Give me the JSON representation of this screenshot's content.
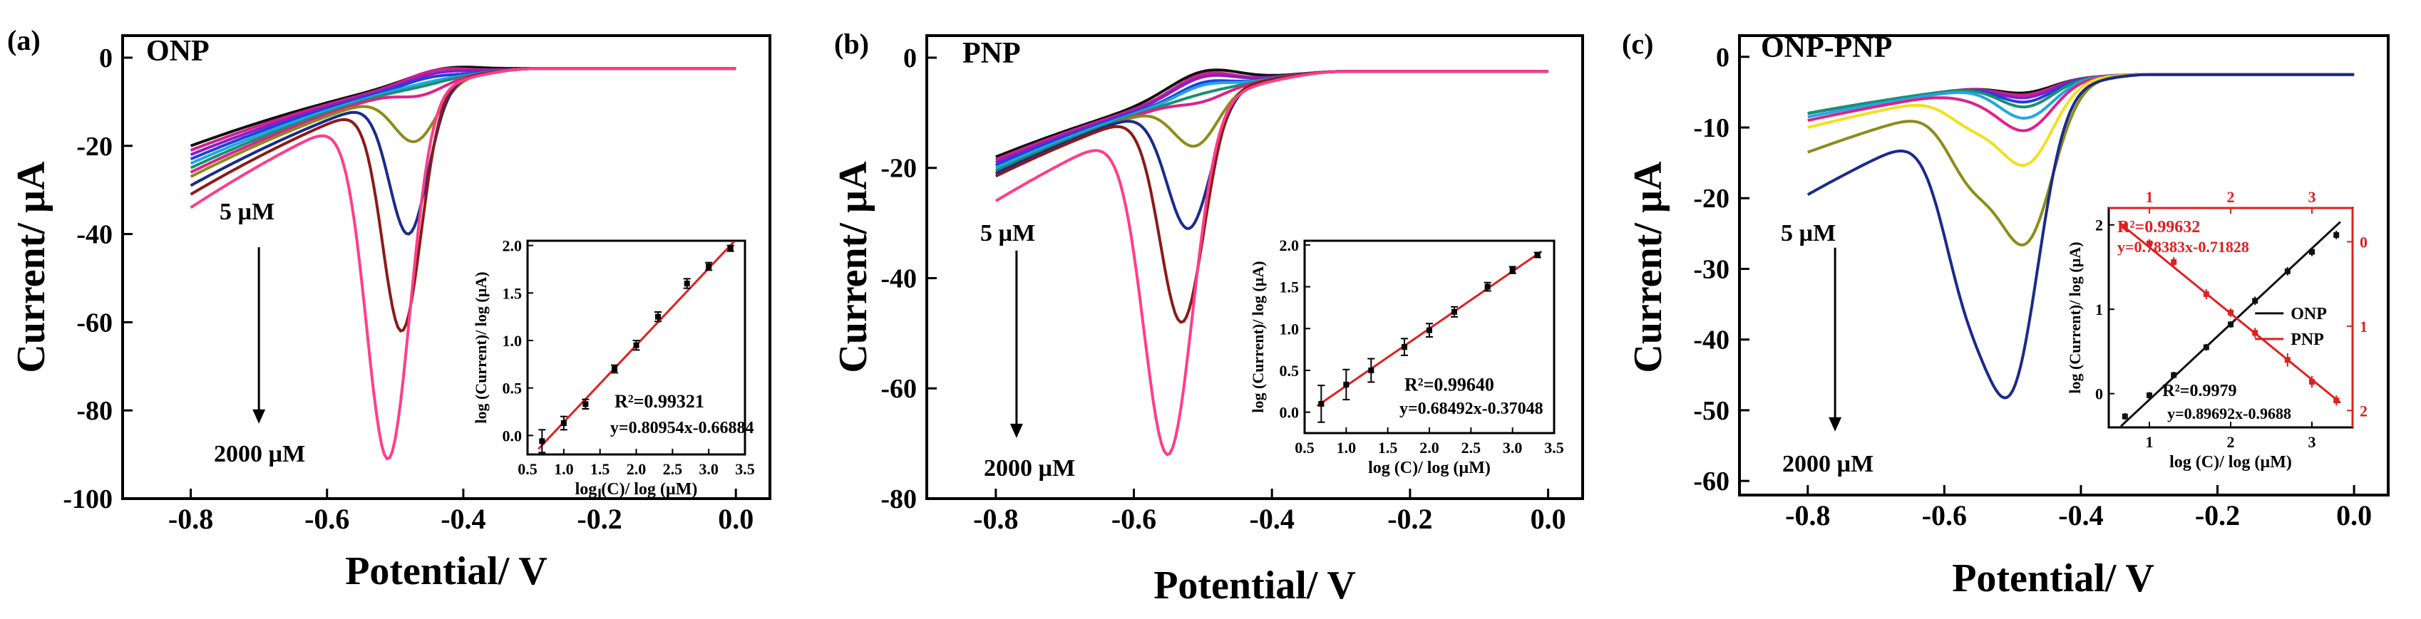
{
  "chart_data": [
    {
      "type": "line",
      "panel_label": "(a)",
      "title": "ONP",
      "xlabel": "Potential/ V",
      "ylabel": "Current/ µA",
      "xlim": [
        -0.9,
        0.05
      ],
      "ylim": [
        -100,
        5
      ],
      "xticks": [
        -0.8,
        -0.6,
        -0.4,
        -0.2,
        0.0
      ],
      "xtick_labels": [
        "-0.8",
        "-0.6",
        "-0.4",
        "-0.2",
        "0.0"
      ],
      "yticks": [
        0,
        -20,
        -40,
        -60,
        -80,
        -100
      ],
      "ytick_labels": [
        "0",
        "-20",
        "-40",
        "-60",
        "-80",
        "-100"
      ],
      "annotation_low": "5 µM",
      "annotation_high": "2000 µM",
      "arrow": {
        "x": -0.7,
        "y_from": -43,
        "y_to": -83
      },
      "series": [
        {
          "name": "c1",
          "color": "#111111",
          "start": -20,
          "peak_v": -0.43,
          "peak": -2.5,
          "peak_w": 0.07
        },
        {
          "name": "c2",
          "color": "#d0208a",
          "start": -21,
          "peak_v": -0.44,
          "peak": -2.8,
          "peak_w": 0.06
        },
        {
          "name": "c3",
          "color": "#8a1fc0",
          "start": -22,
          "peak_v": -0.44,
          "peak": -3.5,
          "peak_w": 0.06
        },
        {
          "name": "c4",
          "color": "#2040e0",
          "start": -23,
          "peak_v": -0.45,
          "peak": -4.5,
          "peak_w": 0.05
        },
        {
          "name": "c5",
          "color": "#20a8e0",
          "start": -24,
          "peak_v": -0.45,
          "peak": -5.5,
          "peak_w": 0.05
        },
        {
          "name": "c6",
          "color": "#1a9070",
          "start": -25,
          "peak_v": -0.46,
          "peak": -6.5,
          "peak_w": 0.045
        },
        {
          "name": "c7",
          "color": "#e0208a",
          "start": -26,
          "peak_v": -0.46,
          "peak": -8.5,
          "peak_w": 0.045
        },
        {
          "name": "c8",
          "color": "#8c8c1a",
          "start": -27,
          "peak_v": -0.47,
          "peak": -19,
          "peak_w": 0.045
        },
        {
          "name": "c9",
          "color": "#1a2a8c",
          "start": -29,
          "peak_v": -0.48,
          "peak": -40,
          "peak_w": 0.04
        },
        {
          "name": "c10",
          "color": "#8c1a1a",
          "start": -31,
          "peak_v": -0.49,
          "peak": -62,
          "peak_w": 0.04
        },
        {
          "name": "c11",
          "color": "#ff3d8a",
          "start": -34,
          "peak_v": -0.51,
          "peak": -91,
          "peak_w": 0.045
        }
      ],
      "inset": {
        "xlabel": "log (C)/ log (µM)",
        "ylabel": "log (Current)/ log (µA)",
        "xlim": [
          0.5,
          3.5
        ],
        "ylim": [
          -0.2,
          2.05
        ],
        "xticks": [
          0.5,
          1.0,
          1.5,
          2.0,
          2.5,
          3.0,
          3.5
        ],
        "xtick_labels": [
          "0.5",
          "1.0",
          "1.5",
          "2.0",
          "2.5",
          "3.0",
          "3.5"
        ],
        "yticks": [
          0.0,
          0.5,
          1.0,
          1.5,
          2.0
        ],
        "ytick_labels": [
          "0.0",
          "0.5",
          "1.0",
          "1.5",
          "2.0"
        ],
        "points": {
          "x": [
            0.7,
            1.0,
            1.3,
            1.7,
            2.0,
            2.3,
            2.7,
            3.0,
            3.3
          ],
          "y": [
            -0.06,
            0.13,
            0.33,
            0.7,
            0.95,
            1.25,
            1.6,
            1.78,
            1.97
          ],
          "err": [
            0.12,
            0.07,
            0.05,
            0.04,
            0.05,
            0.05,
            0.05,
            0.04,
            0.03
          ]
        },
        "fit": {
          "slope": 0.80954,
          "intercept": -0.66884
        },
        "r2_text": "R²=0.99321",
        "eq_text": "y=0.80954x-0.66884"
      }
    },
    {
      "type": "line",
      "panel_label": "(b)",
      "title": "PNP",
      "xlabel": "Potential/ V",
      "ylabel": "Current/ µA",
      "xlim": [
        -0.9,
        0.05
      ],
      "ylim": [
        -80,
        4
      ],
      "xticks": [
        -0.8,
        -0.6,
        -0.4,
        -0.2,
        0.0
      ],
      "xtick_labels": [
        "-0.8",
        "-0.6",
        "-0.4",
        "-0.2",
        "0.0"
      ],
      "yticks": [
        0,
        -20,
        -40,
        -60,
        -80
      ],
      "ytick_labels": [
        "0",
        "-20",
        "-40",
        "-60",
        "-80"
      ],
      "annotation_low": "5 µM",
      "annotation_high": "2000 µM",
      "arrow": {
        "x": -0.77,
        "y_from": -35,
        "y_to": -69
      },
      "series": [
        {
          "name": "c1",
          "color": "#111111",
          "start": -18,
          "peak_v": -0.5,
          "peak": -2.5,
          "peak_w": 0.07
        },
        {
          "name": "c2",
          "color": "#d0208a",
          "start": -18.5,
          "peak_v": -0.5,
          "peak": -3,
          "peak_w": 0.06
        },
        {
          "name": "c3",
          "color": "#8a1fc0",
          "start": -19,
          "peak_v": -0.5,
          "peak": -3.5,
          "peak_w": 0.06
        },
        {
          "name": "c4",
          "color": "#2040e0",
          "start": -19.5,
          "peak_v": -0.5,
          "peak": -4.5,
          "peak_w": 0.05
        },
        {
          "name": "c5",
          "color": "#20a8e0",
          "start": -20,
          "peak_v": -0.5,
          "peak": -5,
          "peak_w": 0.05
        },
        {
          "name": "c6",
          "color": "#1a9070",
          "start": -20.5,
          "peak_v": -0.5,
          "peak": -6.5,
          "peak_w": 0.045
        },
        {
          "name": "c7",
          "color": "#e0208a",
          "start": -21,
          "peak_v": -0.5,
          "peak": -8,
          "peak_w": 0.045
        },
        {
          "name": "c8",
          "color": "#8c8c1a",
          "start": -21,
          "peak_v": -0.51,
          "peak": -16,
          "peak_w": 0.045
        },
        {
          "name": "c9",
          "color": "#1a2a8c",
          "start": -21,
          "peak_v": -0.52,
          "peak": -31,
          "peak_w": 0.045
        },
        {
          "name": "c10",
          "color": "#8c1a1a",
          "start": -21.5,
          "peak_v": -0.53,
          "peak": -48,
          "peak_w": 0.045
        },
        {
          "name": "c11",
          "color": "#ff3d8a",
          "start": -26,
          "peak_v": -0.55,
          "peak": -72,
          "peak_w": 0.05
        }
      ],
      "inset": {
        "xlabel": "log (C)/ log (µM)",
        "ylabel": "log (Current)/ log (µA)",
        "xlim": [
          0.5,
          3.5
        ],
        "ylim": [
          -0.25,
          2.05
        ],
        "xticks": [
          0.5,
          1.0,
          1.5,
          2.0,
          2.5,
          3.0,
          3.5
        ],
        "xtick_labels": [
          "0.5",
          "1.0",
          "1.5",
          "2.0",
          "2.5",
          "3.0",
          "3.5"
        ],
        "yticks": [
          0.0,
          0.5,
          1.0,
          1.5,
          2.0
        ],
        "ytick_labels": [
          "0.0",
          "0.5",
          "1.0",
          "1.5",
          "2.0"
        ],
        "points": {
          "x": [
            0.7,
            1.0,
            1.3,
            1.7,
            2.0,
            2.3,
            2.7,
            3.0,
            3.3
          ],
          "y": [
            0.1,
            0.33,
            0.5,
            0.78,
            0.98,
            1.2,
            1.5,
            1.7,
            1.88
          ],
          "err": [
            0.22,
            0.18,
            0.14,
            0.1,
            0.08,
            0.06,
            0.05,
            0.04,
            0.03
          ]
        },
        "fit": {
          "slope": 0.68492,
          "intercept": -0.37048
        },
        "r2_text": "R²=0.99640",
        "eq_text": "y=0.68492x-0.37048"
      }
    },
    {
      "type": "line",
      "panel_label": "(c)",
      "title": "ONP-PNP",
      "xlabel": "Potential/ V",
      "ylabel": "Current/ µA",
      "xlim": [
        -0.9,
        0.05
      ],
      "ylim": [
        -62,
        3
      ],
      "xticks": [
        -0.8,
        -0.6,
        -0.4,
        -0.2,
        0.0
      ],
      "xtick_labels": [
        "-0.8",
        "-0.6",
        "-0.4",
        "-0.2",
        "0.0"
      ],
      "yticks": [
        0,
        -10,
        -20,
        -30,
        -40,
        -50,
        -60
      ],
      "ytick_labels": [
        "0",
        "-10",
        "-20",
        "-30",
        "-40",
        "-50",
        "-60"
      ],
      "annotation_low": "5 µM",
      "annotation_high": "2000 µM",
      "arrow": {
        "x": -0.76,
        "y_from": -27,
        "y_to": -53
      },
      "series": [
        {
          "name": "c1",
          "color": "#111111",
          "start": -8,
          "p1v": -0.55,
          "p1": 0,
          "p2v": -0.48,
          "p2": -1.5
        },
        {
          "name": "c2",
          "color": "#d0208a",
          "start": -8,
          "p1v": -0.55,
          "p1": 0,
          "p2v": -0.48,
          "p2": -1.8
        },
        {
          "name": "c3",
          "color": "#8a1fc0",
          "start": -8,
          "p1v": -0.55,
          "p1": 0,
          "p2v": -0.48,
          "p2": -2.2
        },
        {
          "name": "c4",
          "color": "#2040e0",
          "start": -8,
          "p1v": -0.55,
          "p1": 0,
          "p2v": -0.48,
          "p2": -2.8
        },
        {
          "name": "c5",
          "color": "#1a9070",
          "start": -8,
          "p1v": -0.55,
          "p1": 0,
          "p2v": -0.48,
          "p2": -3.5
        },
        {
          "name": "c6",
          "color": "#20a8e0",
          "start": -8.5,
          "p1v": -0.55,
          "p1": 0,
          "p2v": -0.48,
          "p2": -5
        },
        {
          "name": "c7",
          "color": "#e0208a",
          "start": -9,
          "p1v": -0.55,
          "p1": -1,
          "p2v": -0.48,
          "p2": -6.5
        },
        {
          "name": "c8",
          "color": "#f0e020",
          "start": -10,
          "p1v": -0.56,
          "p1": -4,
          "p2v": -0.48,
          "p2": -11
        },
        {
          "name": "c9",
          "color": "#8c8c1a",
          "start": -13.5,
          "p1v": -0.56,
          "p1": -10,
          "p2v": -0.48,
          "p2": -21
        },
        {
          "name": "c10",
          "color": "#1a2a8c",
          "start": -19.5,
          "p1v": -0.57,
          "p1": -20,
          "p2v": -0.5,
          "p2": -38
        }
      ],
      "inset": {
        "xlabel": "log (C)/ log (µM)",
        "ylabel_left": "log (Current)/ log (µA)",
        "xlim": [
          0.5,
          3.5
        ],
        "ylim_left": [
          -0.4,
          2.2
        ],
        "ylim_right": [
          2.2,
          -0.4
        ],
        "bottom_xticks": [
          1,
          2,
          3
        ],
        "top_xticks": [
          1,
          2,
          3
        ],
        "left_yticks": [
          0,
          1,
          2
        ],
        "right_yticks": [
          0,
          1,
          2
        ],
        "onp": {
          "label": "ONP",
          "color": "#111111",
          "x": [
            0.7,
            1.0,
            1.3,
            1.7,
            2.0,
            2.3,
            2.7,
            3.0,
            3.3
          ],
          "y": [
            -0.27,
            -0.02,
            0.22,
            0.55,
            0.82,
            1.1,
            1.45,
            1.68,
            1.88
          ],
          "err": [
            0.04,
            0.04,
            0.04,
            0.04,
            0.04,
            0.05,
            0.05,
            0.05,
            0.05
          ],
          "fit": {
            "slope": 0.89692,
            "intercept": -0.9688
          }
        },
        "pnp": {
          "label": "PNP",
          "color": "#e02020",
          "x": [
            0.7,
            1.0,
            1.3,
            1.7,
            2.0,
            2.3,
            2.7,
            3.0,
            3.3
          ],
          "y": [
            -0.18,
            0.02,
            0.24,
            0.62,
            0.84,
            1.08,
            1.4,
            1.66,
            1.88
          ],
          "err": [
            0.05,
            0.05,
            0.06,
            0.06,
            0.05,
            0.06,
            0.08,
            0.07,
            0.06
          ],
          "fit": {
            "slope": 0.78383,
            "intercept": -0.71828
          }
        },
        "legend": [
          "ONP",
          "PNP"
        ],
        "r2_pnp_text": "R²=0.99632",
        "eq_pnp_text": "y=0.78383x-0.71828",
        "r2_onp_text": "R²=0.9979",
        "eq_onp_text": "y=0.89692x-0.9688"
      }
    }
  ]
}
